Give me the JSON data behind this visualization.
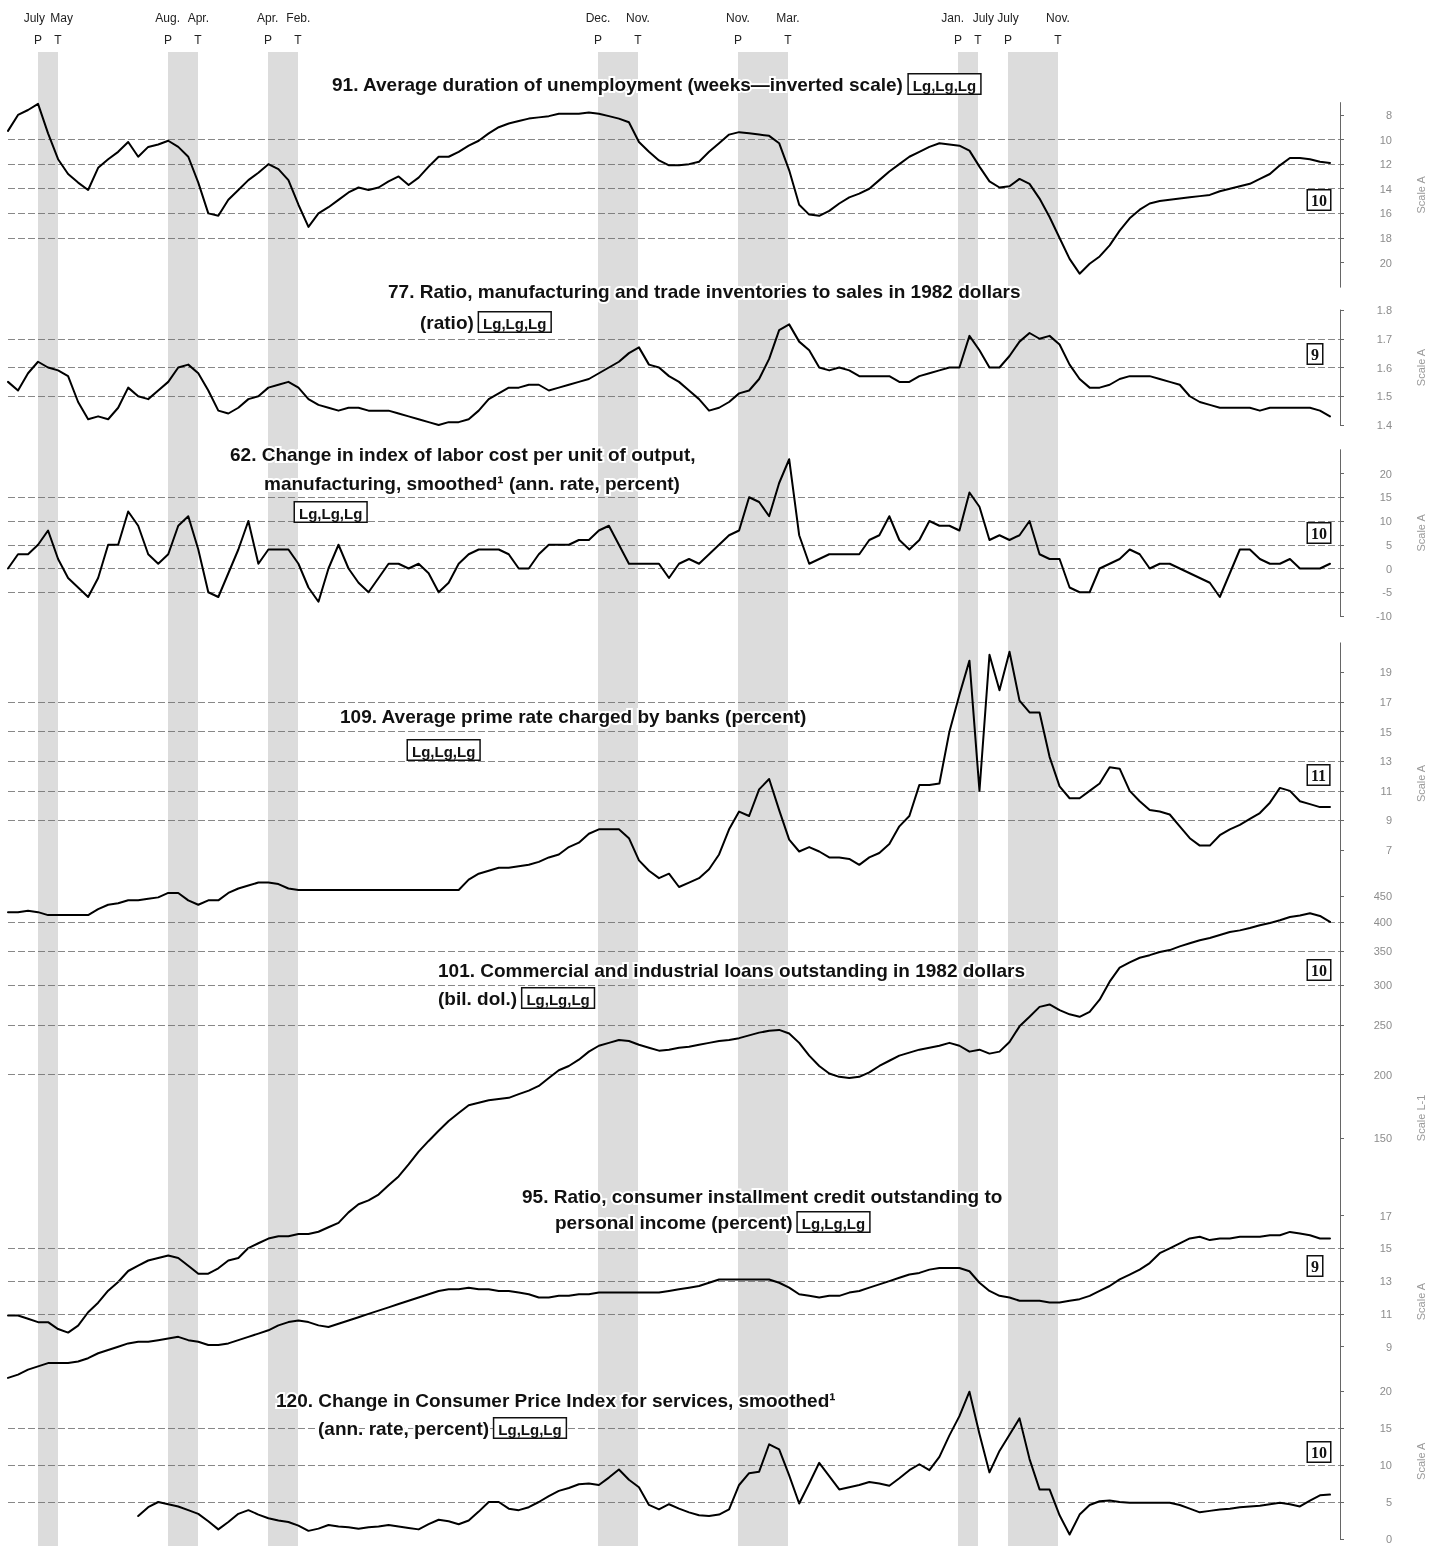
{
  "chart_data": [
    {
      "type": "line",
      "title": "91. Average duration of unemployment (weeks—inverted scale) Lg,Lg,Lg",
      "ylabel": "Scale A",
      "annotations": [
        "10",
        "July May\nP T",
        "Aug. Apr.\nP T",
        "Apr. Feb.\nP T",
        "Dec. Nov.\nP T",
        "Nov. Mar.\nP T",
        "Jan. July\nP T",
        "July Nov.\nP T"
      ],
      "categories": [
        null,
        null,
        null,
        null,
        null,
        null,
        null,
        null,
        null,
        null,
        null,
        null,
        null,
        null,
        null,
        null,
        null,
        null,
        null,
        null,
        null,
        null,
        null,
        null,
        null,
        null,
        null,
        null,
        null,
        null,
        null,
        null,
        null,
        null,
        null,
        null,
        null,
        null,
        null,
        null,
        null,
        null,
        null,
        null,
        null,
        null,
        null,
        null,
        null,
        null,
        null,
        null,
        null,
        null,
        null,
        null,
        null,
        null,
        null,
        null,
        null,
        null,
        null,
        null,
        null,
        null,
        null,
        null,
        null,
        null,
        null,
        null,
        null,
        null,
        null,
        null,
        null,
        null,
        null,
        null,
        null,
        null,
        null,
        null,
        null,
        null,
        null,
        null,
        null,
        null,
        null,
        null,
        null,
        null,
        null,
        null,
        null,
        null,
        null,
        null,
        null,
        null,
        null,
        null,
        null,
        null,
        null,
        null,
        null,
        null,
        null,
        null,
        null,
        null,
        null,
        null,
        null,
        null,
        null,
        null,
        null,
        null,
        null,
        null,
        null,
        null,
        null,
        null,
        null,
        null,
        null,
        null,
        null,
        null
      ],
      "values": [
        9.3,
        8.0,
        7.6,
        7.1,
        9.5,
        11.6,
        12.8,
        13.5,
        14.1,
        12.3,
        11.6,
        11.0,
        10.2,
        11.4,
        10.6,
        10.4,
        10.1,
        10.6,
        11.4,
        13.5,
        16.0,
        16.2,
        14.9,
        14.1,
        13.3,
        12.7,
        12.0,
        12.4,
        13.3,
        15.3,
        17.1,
        16.0,
        15.5,
        14.9,
        14.3,
        13.9,
        14.1,
        13.9,
        13.4,
        13.0,
        13.7,
        13.1,
        12.2,
        11.4,
        11.4,
        11.0,
        10.5,
        10.1,
        9.5,
        9.0,
        8.7,
        8.5,
        8.3,
        8.2,
        8.1,
        7.9,
        7.9,
        7.9,
        7.8,
        7.9,
        8.1,
        8.3,
        8.6,
        10.2,
        11.0,
        11.7,
        12.1,
        12.1,
        12.0,
        11.8,
        11.0,
        10.3,
        9.6,
        9.4,
        9.5,
        9.6,
        9.7,
        10.3,
        12.5,
        15.3,
        16.1,
        16.2,
        15.8,
        15.2,
        14.7,
        14.4,
        14.0,
        13.3,
        12.6,
        12.0,
        11.4,
        11.0,
        10.6,
        10.3,
        10.4,
        10.5,
        10.9,
        12.2,
        13.4,
        13.9,
        13.8,
        13.2,
        13.6,
        14.8,
        16.3,
        18.0,
        19.7,
        20.9,
        20.1,
        19.5,
        18.6,
        17.4,
        16.4,
        15.7,
        15.2,
        15.0,
        14.9,
        14.8,
        14.7,
        14.6,
        14.5,
        14.2,
        14.0,
        13.8,
        13.6,
        13.2,
        12.8,
        12.1,
        11.5,
        11.5,
        11.6,
        11.8,
        11.9,
        null
      ],
      "color": "#000000",
      "ylim": [
        22,
        7
      ],
      "yticks": [
        8,
        10,
        12,
        14,
        16,
        18,
        20
      ],
      "grid": "y",
      "marker": "none",
      "tick_labels": "y"
    },
    {
      "type": "line",
      "title": "77. Ratio, manufacturing and trade inventories to sales in 1982 dollars\n(ratio) Lg,Lg,Lg",
      "ylabel": "Scale A",
      "annotations": [
        "9"
      ],
      "categories": [
        null,
        null,
        null,
        null,
        null,
        null,
        null,
        null,
        null,
        null,
        null,
        null,
        null,
        null,
        null,
        null,
        null,
        null,
        null,
        null,
        null,
        null,
        null,
        null,
        null,
        null,
        null,
        null,
        null,
        null,
        null,
        null,
        null,
        null,
        null,
        null,
        null,
        null,
        null,
        null,
        null,
        null,
        null,
        null,
        null,
        null,
        null,
        null,
        null,
        null,
        null,
        null,
        null,
        null,
        null,
        null,
        null,
        null,
        null,
        null,
        null,
        null,
        null,
        null,
        null,
        null,
        null,
        null,
        null,
        null,
        null,
        null,
        null,
        null,
        null,
        null,
        null,
        null,
        null,
        null,
        null,
        null,
        null,
        null,
        null,
        null,
        null,
        null,
        null,
        null,
        null,
        null,
        null,
        null,
        null,
        null,
        null,
        null,
        null,
        null,
        null,
        null,
        null,
        null,
        null,
        null,
        null,
        null,
        null,
        null,
        null,
        null,
        null,
        null,
        null,
        null,
        null,
        null,
        null,
        null,
        null,
        null,
        null,
        null,
        null,
        null,
        null,
        null,
        null,
        null,
        null,
        null,
        null,
        null
      ],
      "values": [
        1.55,
        1.52,
        1.58,
        1.62,
        1.6,
        1.59,
        1.57,
        1.48,
        1.42,
        1.43,
        1.42,
        1.46,
        1.53,
        1.5,
        1.49,
        1.52,
        1.55,
        1.6,
        1.61,
        1.58,
        1.52,
        1.45,
        1.44,
        1.46,
        1.49,
        1.5,
        1.53,
        1.54,
        1.55,
        1.53,
        1.49,
        1.47,
        1.46,
        1.45,
        1.46,
        1.46,
        1.45,
        1.45,
        1.45,
        1.44,
        1.43,
        1.42,
        1.41,
        1.4,
        1.41,
        1.41,
        1.42,
        1.45,
        1.49,
        1.51,
        1.53,
        1.53,
        1.54,
        1.54,
        1.52,
        1.53,
        1.54,
        1.55,
        1.56,
        1.58,
        1.6,
        1.62,
        1.65,
        1.67,
        1.61,
        1.6,
        1.57,
        1.55,
        1.52,
        1.49,
        1.45,
        1.46,
        1.48,
        1.51,
        1.52,
        1.56,
        1.63,
        1.73,
        1.75,
        1.69,
        1.66,
        1.6,
        1.59,
        1.6,
        1.59,
        1.57,
        1.57,
        1.57,
        1.57,
        1.55,
        1.55,
        1.57,
        1.58,
        1.59,
        1.6,
        1.6,
        1.71,
        1.66,
        1.6,
        1.6,
        1.64,
        1.69,
        1.72,
        1.7,
        1.71,
        1.68,
        1.61,
        1.56,
        1.53,
        1.53,
        1.54,
        1.56,
        1.57,
        1.57,
        1.57,
        1.56,
        1.55,
        1.54,
        1.5,
        1.48,
        1.47,
        1.46,
        1.46,
        1.46,
        1.46,
        1.45,
        1.46,
        1.46,
        1.46,
        1.46,
        1.46,
        1.45,
        1.43,
        null
      ],
      "color": "#000000",
      "ylim": [
        1.4,
        1.8
      ],
      "yticks": [
        1.4,
        1.5,
        1.6,
        1.7,
        1.8
      ],
      "grid": "y",
      "marker": "none",
      "tick_labels": "y"
    },
    {
      "type": "line",
      "title": "62. Change in index of labor cost per unit of output,\nmanufacturing, smoothed¹ (ann. rate, percent)\nLg,Lg,Lg",
      "ylabel": "Scale A",
      "annotations": [
        "10"
      ],
      "categories": [
        null,
        null,
        null,
        null,
        null,
        null,
        null,
        null,
        null,
        null,
        null,
        null,
        null,
        null,
        null,
        null,
        null,
        null,
        null,
        null,
        null,
        null,
        null,
        null,
        null,
        null,
        null,
        null,
        null,
        null,
        null,
        null,
        null,
        null,
        null,
        null,
        null,
        null,
        null,
        null,
        null,
        null,
        null,
        null,
        null,
        null,
        null,
        null,
        null,
        null,
        null,
        null,
        null,
        null,
        null,
        null,
        null,
        null,
        null,
        null,
        null,
        null,
        null,
        null,
        null,
        null,
        null,
        null,
        null,
        null,
        null,
        null,
        null,
        null,
        null,
        null,
        null,
        null,
        null,
        null,
        null,
        null,
        null,
        null,
        null,
        null,
        null,
        null,
        null,
        null,
        null,
        null,
        null,
        null,
        null,
        null,
        null,
        null,
        null,
        null,
        null,
        null,
        null,
        null,
        null,
        null,
        null,
        null,
        null,
        null,
        null,
        null,
        null,
        null,
        null,
        null,
        null,
        null,
        null,
        null,
        null,
        null,
        null,
        null,
        null,
        null,
        null,
        null,
        null,
        null,
        null,
        null,
        null,
        null
      ],
      "values": [
        0,
        3,
        3,
        5,
        8,
        2,
        -2,
        -4,
        -6,
        -2,
        5,
        5,
        12,
        9,
        3,
        1,
        3,
        9,
        11,
        4,
        -5,
        -6,
        -1,
        4,
        10,
        1,
        4,
        4,
        4,
        1,
        -4,
        -7,
        0,
        5,
        0,
        -3,
        -5,
        -2,
        1,
        1,
        0,
        1,
        -1,
        -5,
        -3,
        1,
        3,
        4,
        4,
        4,
        3,
        0,
        0,
        3,
        5,
        5,
        5,
        6,
        6,
        8,
        9,
        5,
        1,
        1,
        1,
        1,
        -2,
        1,
        2,
        1,
        3,
        5,
        7,
        8,
        15,
        14,
        11,
        18,
        23,
        7,
        1,
        2,
        3,
        3,
        3,
        3,
        6,
        7,
        11,
        6,
        4,
        6,
        10,
        9,
        9,
        8,
        16,
        13,
        6,
        7,
        6,
        7,
        10,
        3,
        2,
        2,
        -4,
        -5,
        -5,
        0,
        1,
        2,
        4,
        3,
        0,
        1,
        1,
        0,
        -1,
        -2,
        -3,
        -6,
        -1,
        4,
        4,
        2,
        1,
        1,
        2,
        0,
        0,
        0,
        1,
        null
      ],
      "color": "#000000",
      "ylim": [
        -10,
        25
      ],
      "yticks": [
        -10,
        -5,
        0,
        5,
        10,
        15,
        20
      ],
      "grid": "y",
      "marker": "none",
      "tick_labels": "y"
    },
    {
      "type": "line",
      "title": "109. Average prime rate charged by banks (percent)\nLg,Lg,Lg",
      "ylabel": "Scale A",
      "annotations": [
        "11"
      ],
      "categories": [
        null,
        null,
        null,
        null,
        null,
        null,
        null,
        null,
        null,
        null,
        null,
        null,
        null,
        null,
        null,
        null,
        null,
        null,
        null,
        null,
        null,
        null,
        null,
        null,
        null,
        null,
        null,
        null,
        null,
        null,
        null,
        null,
        null,
        null,
        null,
        null,
        null,
        null,
        null,
        null,
        null,
        null,
        null,
        null,
        null,
        null,
        null,
        null,
        null,
        null,
        null,
        null,
        null,
        null,
        null,
        null,
        null,
        null,
        null,
        null,
        null,
        null,
        null,
        null,
        null,
        null,
        null,
        null,
        null,
        null,
        null,
        null,
        null,
        null,
        null,
        null,
        null,
        null,
        null,
        null,
        null,
        null,
        null,
        null,
        null,
        null,
        null,
        null,
        null,
        null,
        null,
        null,
        null,
        null,
        null,
        null,
        null,
        null,
        null,
        null,
        null,
        null,
        null,
        null,
        null,
        null,
        null,
        null,
        null,
        null,
        null,
        null,
        null,
        null,
        null,
        null,
        null,
        null,
        null,
        null,
        null,
        null,
        null,
        null,
        null,
        null,
        null,
        null,
        null,
        null,
        null,
        null,
        null,
        null
      ],
      "values": [
        2.8,
        2.8,
        2.9,
        2.8,
        2.6,
        2.6,
        2.6,
        2.6,
        2.6,
        3.0,
        3.3,
        3.4,
        3.6,
        3.6,
        3.7,
        3.8,
        4.1,
        4.1,
        3.6,
        3.3,
        3.6,
        3.6,
        4.1,
        4.4,
        4.6,
        4.8,
        4.8,
        4.7,
        4.4,
        4.3,
        4.3,
        4.3,
        4.3,
        4.3,
        4.3,
        4.3,
        4.3,
        4.3,
        4.3,
        4.3,
        4.3,
        4.3,
        4.3,
        4.3,
        4.3,
        4.3,
        5.0,
        5.4,
        5.6,
        5.8,
        5.8,
        5.9,
        6.0,
        6.2,
        6.5,
        6.7,
        7.2,
        7.5,
        8.1,
        8.4,
        8.4,
        8.4,
        7.8,
        6.3,
        5.6,
        5.1,
        5.4,
        4.5,
        4.8,
        5.1,
        5.7,
        6.7,
        8.4,
        9.6,
        9.3,
        11.1,
        11.8,
        9.7,
        7.7,
        6.9,
        7.2,
        6.9,
        6.5,
        6.5,
        6.4,
        6.0,
        6.5,
        6.8,
        7.4,
        8.6,
        9.3,
        11.4,
        11.4,
        11.5,
        15.0,
        17.5,
        19.8,
        11.0,
        20.2,
        17.8,
        20.4,
        17.1,
        16.3,
        16.3,
        13.3,
        11.3,
        10.5,
        10.5,
        11.0,
        11.5,
        12.6,
        12.5,
        11.0,
        10.3,
        9.7,
        9.6,
        9.4,
        8.6,
        7.8,
        7.3,
        7.3,
        8.0,
        8.4,
        8.7,
        9.1,
        9.5,
        10.2,
        11.2,
        11.0,
        10.3,
        10.1,
        9.9,
        9.9,
        null
      ],
      "color": "#000000",
      "ylim": [
        2,
        21
      ],
      "yticks": [
        7,
        9,
        11,
        13,
        15,
        17,
        19
      ],
      "grid": "y",
      "marker": "none",
      "tick_labels": "y"
    },
    {
      "type": "line",
      "title": "101. Commercial and industrial loans outstanding in 1982 dollars\n(bil. dol.) Lg,Lg,Lg",
      "ylabel": "Scale L-1",
      "annotations": [
        "10"
      ],
      "categories": [
        null,
        null,
        null,
        null,
        null,
        null,
        null,
        null,
        null,
        null,
        null,
        null,
        null,
        null,
        null,
        null,
        null,
        null,
        null,
        null,
        null,
        null,
        null,
        null,
        null,
        null,
        null,
        null,
        null,
        null,
        null,
        null,
        null,
        null,
        null,
        null,
        null,
        null,
        null,
        null,
        null,
        null,
        null,
        null,
        null,
        null,
        null,
        null,
        null,
        null,
        null,
        null,
        null,
        null,
        null,
        null,
        null,
        null,
        null,
        null,
        null,
        null,
        null,
        null,
        null,
        null,
        null,
        null,
        null,
        null,
        null,
        null,
        null,
        null,
        null,
        null,
        null,
        null,
        null,
        null,
        null,
        null,
        null,
        null,
        null,
        null,
        null,
        null,
        null,
        null,
        null,
        null,
        null,
        null,
        null,
        null,
        null,
        null,
        null,
        null,
        null,
        null,
        null,
        null,
        null,
        null,
        null,
        null,
        null,
        null,
        null,
        null,
        null,
        null,
        null,
        null,
        null,
        null,
        null,
        null,
        null,
        null,
        null,
        null,
        null,
        null,
        null,
        null,
        null,
        null,
        null,
        null,
        null,
        null
      ],
      "values": [
        67,
        67,
        66,
        65,
        65,
        63,
        62,
        64,
        68,
        71,
        75,
        78,
        82,
        84,
        86,
        87,
        88,
        87,
        84,
        81,
        81,
        83,
        86,
        87,
        91,
        93,
        95,
        96,
        96,
        97,
        97,
        98,
        100,
        102,
        107,
        111,
        113,
        116,
        121,
        126,
        133,
        141,
        148,
        155,
        162,
        168,
        174,
        176,
        178,
        179,
        180,
        183,
        186,
        190,
        197,
        204,
        208,
        214,
        222,
        228,
        231,
        234,
        233,
        229,
        226,
        223,
        224,
        226,
        227,
        229,
        231,
        233,
        234,
        236,
        239,
        242,
        244,
        245,
        241,
        231,
        218,
        208,
        201,
        198,
        197,
        198,
        202,
        208,
        213,
        218,
        221,
        224,
        226,
        228,
        231,
        228,
        222,
        224,
        220,
        222,
        232,
        249,
        260,
        272,
        275,
        268,
        263,
        260,
        266,
        281,
        305,
        325,
        333,
        340,
        344,
        349,
        352,
        358,
        363,
        368,
        372,
        377,
        382,
        385,
        389,
        394,
        398,
        403,
        409,
        412,
        416,
        411,
        400,
        null
      ],
      "color": "#000000",
      "ylim": [
        60,
        450
      ],
      "yticks": [
        150,
        200,
        250,
        300,
        350,
        400,
        450
      ],
      "log": true,
      "grid": "y",
      "marker": "none",
      "tick_labels": "y"
    },
    {
      "type": "line",
      "title": "95. Ratio, consumer installment credit outstanding to\npersonal income (percent) Lg,Lg,Lg",
      "ylabel": "Scale A",
      "annotations": [
        "9"
      ],
      "categories": [
        null,
        null,
        null,
        null,
        null,
        null,
        null,
        null,
        null,
        null,
        null,
        null,
        null,
        null,
        null,
        null,
        null,
        null,
        null,
        null,
        null,
        null,
        null,
        null,
        null,
        null,
        null,
        null,
        null,
        null,
        null,
        null,
        null,
        null,
        null,
        null,
        null,
        null,
        null,
        null,
        null,
        null,
        null,
        null,
        null,
        null,
        null,
        null,
        null,
        null,
        null,
        null,
        null,
        null,
        null,
        null,
        null,
        null,
        null,
        null,
        null,
        null,
        null,
        null,
        null,
        null,
        null,
        null,
        null,
        null,
        null,
        null,
        null,
        null,
        null,
        null,
        null,
        null,
        null,
        null,
        null,
        null,
        null,
        null,
        null,
        null,
        null,
        null,
        null,
        null,
        null,
        null,
        null,
        null,
        null,
        null,
        null,
        null,
        null,
        null,
        null,
        null,
        null,
        null,
        null,
        null,
        null,
        null,
        null,
        null,
        null,
        null,
        null,
        null,
        null,
        null,
        null,
        null,
        null,
        null,
        null,
        null,
        null,
        null,
        null,
        null,
        null,
        null,
        null,
        null,
        null,
        null,
        null,
        null
      ],
      "values": [
        7.1,
        7.3,
        7.6,
        7.8,
        8.0,
        8.0,
        8.0,
        8.1,
        8.3,
        8.6,
        8.8,
        9.0,
        9.2,
        9.3,
        9.3,
        9.4,
        9.5,
        9.6,
        9.4,
        9.3,
        9.1,
        9.1,
        9.2,
        9.4,
        9.6,
        9.8,
        10.0,
        10.3,
        10.5,
        10.6,
        10.5,
        10.3,
        10.2,
        10.4,
        10.6,
        10.8,
        11.0,
        11.2,
        11.4,
        11.6,
        11.8,
        12.0,
        12.2,
        12.4,
        12.5,
        12.5,
        12.6,
        12.5,
        12.5,
        12.4,
        12.4,
        12.3,
        12.2,
        12.0,
        12.0,
        12.1,
        12.1,
        12.2,
        12.2,
        12.3,
        12.3,
        12.3,
        12.3,
        12.3,
        12.3,
        12.3,
        12.4,
        12.5,
        12.6,
        12.7,
        12.9,
        13.1,
        13.1,
        13.1,
        13.1,
        13.1,
        13.1,
        12.9,
        12.6,
        12.2,
        12.1,
        12.0,
        12.1,
        12.1,
        12.3,
        12.4,
        12.6,
        12.8,
        13.0,
        13.2,
        13.4,
        13.5,
        13.7,
        13.8,
        13.8,
        13.8,
        13.6,
        12.9,
        12.4,
        12.1,
        12.0,
        11.8,
        11.8,
        11.8,
        11.7,
        11.7,
        11.8,
        11.9,
        12.1,
        12.4,
        12.7,
        13.1,
        13.4,
        13.7,
        14.1,
        14.7,
        15.0,
        15.3,
        15.6,
        15.7,
        15.5,
        15.6,
        15.6,
        15.7,
        15.7,
        15.7,
        15.8,
        15.8,
        16.0,
        15.9,
        15.8,
        15.6,
        15.6,
        null
      ],
      "color": "#000000",
      "ylim": [
        6.5,
        17
      ],
      "yticks": [
        9,
        11,
        13,
        15,
        17
      ],
      "grid": "y",
      "marker": "none",
      "tick_labels": "y"
    },
    {
      "type": "line",
      "title": "120. Change in Consumer Price Index for services, smoothed¹\n(ann. rate, percent) Lg,Lg,Lg",
      "ylabel": "Scale A",
      "annotations": [
        "10"
      ],
      "categories": [
        null,
        null,
        null,
        null,
        null,
        null,
        null,
        null,
        null,
        null,
        null,
        null,
        null,
        null,
        null,
        null,
        null,
        null,
        null,
        null,
        null,
        null,
        null,
        null,
        null,
        null,
        null,
        null,
        null,
        null,
        null,
        null,
        null,
        null,
        null,
        null,
        null,
        null,
        null,
        null,
        null,
        null,
        null,
        null,
        null,
        null,
        null,
        null,
        null,
        null,
        null,
        null,
        null,
        null,
        null,
        null,
        null,
        null,
        null,
        null,
        null,
        null,
        null,
        null,
        null,
        null,
        null,
        null,
        null,
        null,
        null,
        null,
        null,
        null,
        null,
        null,
        null,
        null,
        null,
        null,
        null,
        null,
        null,
        null,
        null,
        null,
        null,
        null,
        null,
        null,
        null,
        null,
        null,
        null,
        null,
        null,
        null,
        null,
        null,
        null,
        null,
        null,
        null,
        null,
        null,
        null,
        null,
        null,
        null,
        null,
        null,
        null,
        null,
        null,
        null,
        null,
        null,
        null,
        null,
        null,
        null,
        null,
        null,
        null,
        null,
        null,
        null,
        null,
        null,
        null,
        null,
        null,
        null,
        null
      ],
      "values": [
        null,
        null,
        null,
        null,
        null,
        null,
        null,
        null,
        null,
        null,
        null,
        null,
        null,
        3.1,
        4.3,
        5.0,
        4.7,
        4.4,
        3.9,
        3.4,
        2.4,
        1.3,
        2.3,
        3.4,
        3.9,
        3.3,
        2.8,
        2.5,
        2.3,
        1.8,
        1.1,
        1.4,
        1.9,
        1.7,
        1.6,
        1.4,
        1.6,
        1.7,
        1.9,
        1.7,
        1.5,
        1.3,
        2.0,
        2.6,
        2.4,
        2.0,
        2.5,
        3.7,
        5.0,
        5.0,
        4.1,
        3.9,
        4.3,
        5.0,
        5.8,
        6.5,
        6.9,
        7.4,
        7.5,
        7.3,
        8.3,
        9.4,
        8.0,
        7.0,
        4.6,
        4.0,
        4.7,
        4.1,
        3.6,
        3.2,
        3.1,
        3.3,
        4.0,
        7.3,
        8.9,
        9.1,
        12.8,
        12.1,
        8.6,
        4.8,
        7.5,
        10.3,
        8.5,
        6.7,
        7.0,
        7.3,
        7.7,
        7.5,
        7.2,
        8.2,
        9.3,
        10.1,
        9.3,
        11.1,
        14.0,
        16.6,
        19.9,
        14.2,
        9.0,
        11.9,
        14.1,
        16.3,
        10.8,
        6.7,
        6.7,
        3.2,
        0.6,
        3.3,
        4.6,
        5.1,
        5.2,
        5.0,
        4.9,
        4.9,
        4.9,
        4.9,
        4.9,
        4.6,
        4.1,
        3.6,
        3.8,
        4.0,
        4.1,
        4.3,
        4.4,
        4.5,
        4.7,
        4.9,
        4.7,
        4.4,
        5.2,
        5.9,
        6.0,
        null
      ],
      "color": "#000000",
      "ylim": [
        0,
        21
      ],
      "yticks": [
        0,
        5,
        10,
        15,
        20
      ],
      "grid": "y",
      "marker": "none",
      "tick_labels": "y"
    }
  ]
}
